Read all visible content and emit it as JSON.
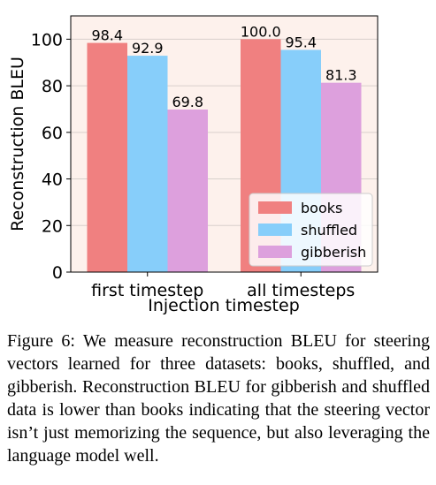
{
  "chart_data": {
    "type": "bar",
    "categories": [
      "first timestep",
      "all timesteps"
    ],
    "series": [
      {
        "name": "books",
        "values": [
          98.4,
          100.0
        ],
        "labels": [
          "98.4",
          "100.0"
        ],
        "color": "#f08080"
      },
      {
        "name": "shuffled",
        "values": [
          92.9,
          95.4
        ],
        "labels": [
          "92.9",
          "95.4"
        ],
        "color": "#87cefa"
      },
      {
        "name": "gibberish",
        "values": [
          69.8,
          81.3
        ],
        "labels": [
          "69.8",
          "81.3"
        ],
        "color": "#dda0dd"
      }
    ],
    "xlabel": "Injection timestep",
    "ylabel": "Reconstruction BLEU",
    "ylim": [
      0,
      110
    ],
    "yticks": [
      0,
      20,
      40,
      60,
      80,
      100
    ],
    "grid": "horizontal",
    "legend_position": "lower-right",
    "plot_background": "#fdf1ec",
    "grid_color": "#d8d0cc"
  },
  "caption": {
    "label": "Figure 6:",
    "text": "We measure reconstruction BLEU for steering vectors learned for three datasets: books, shuffled, and gibberish. Reconstruction BLEU for gibberish and shuffled data is lower than books indicating that the steering vector isn’t just memorizing the sequence, but also leveraging the language model well."
  }
}
